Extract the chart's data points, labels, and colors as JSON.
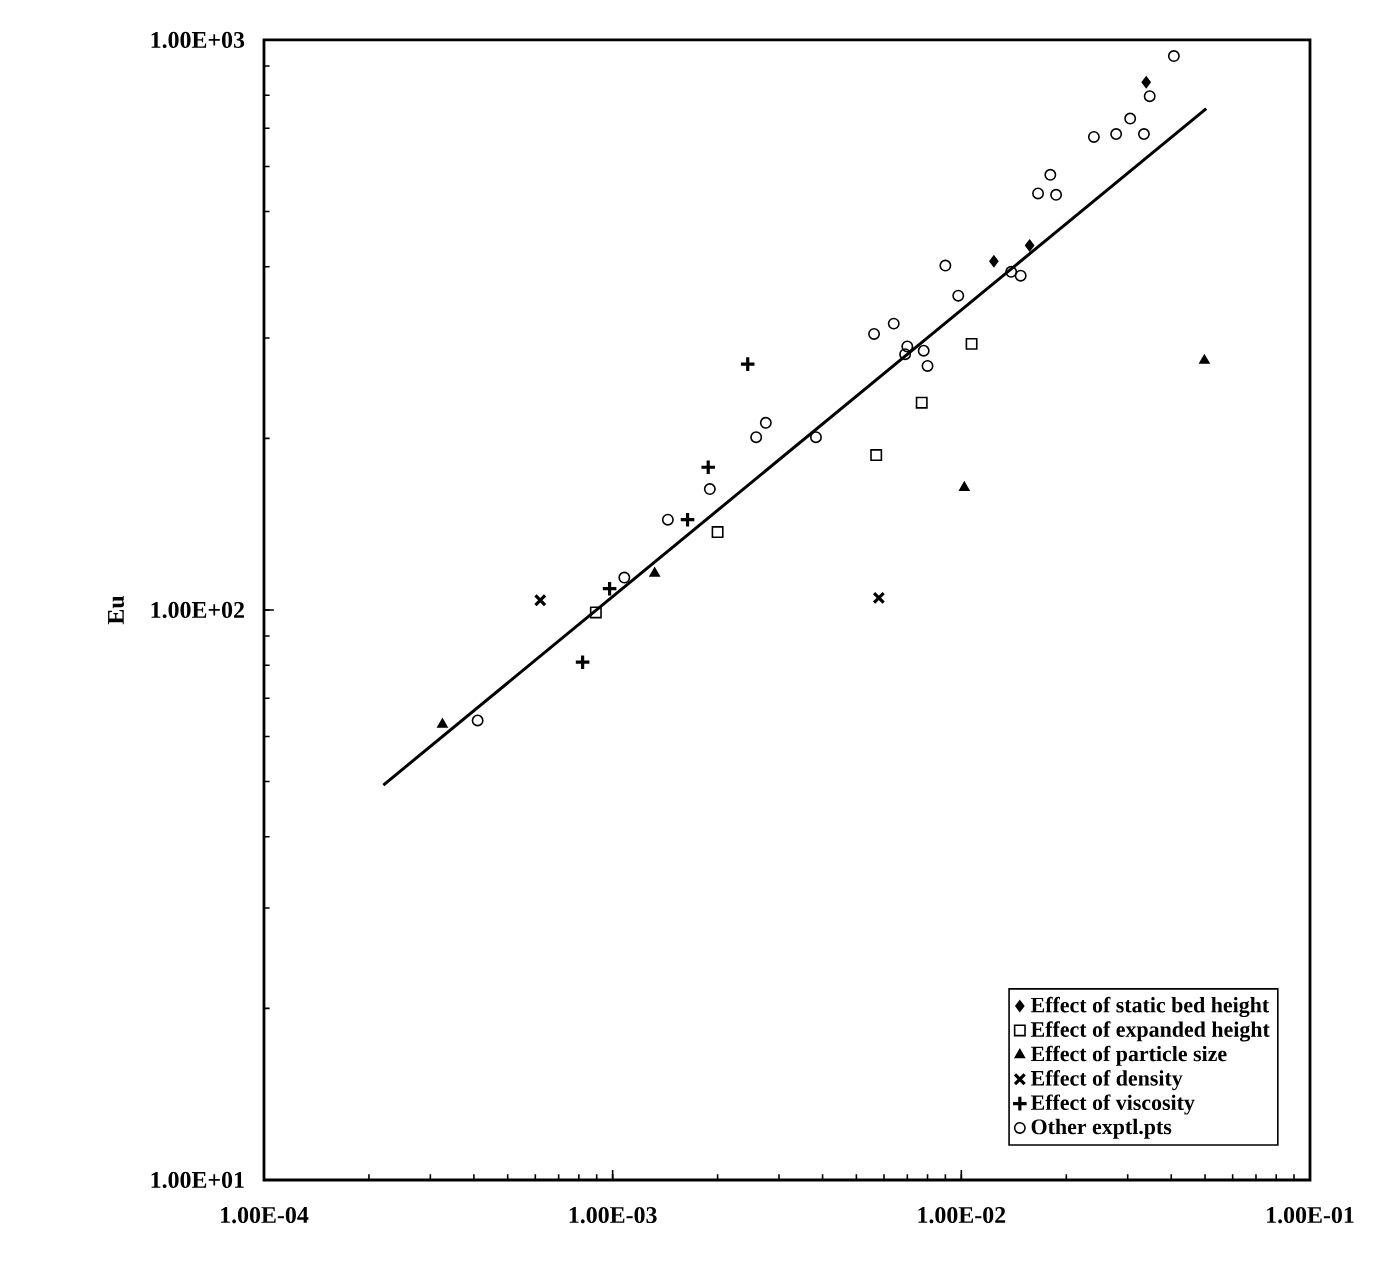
{
  "chart_data": {
    "type": "scatter",
    "ylabel": "Eu",
    "log": "xy",
    "xlim": [
      0.0001,
      0.1
    ],
    "ylim": [
      10,
      1000
    ],
    "xticks": [
      {
        "value": 0.0001,
        "label": "1.00E-04"
      },
      {
        "value": 0.001,
        "label": "1.00E-03"
      },
      {
        "value": 0.01,
        "label": "1.00E-02"
      },
      {
        "value": 0.1,
        "label": "1.00E-01"
      }
    ],
    "yticks": [
      {
        "value": 10,
        "label": "1.00E+01"
      },
      {
        "value": 100,
        "label": "1.00E+02"
      },
      {
        "value": 1000,
        "label": "1.00E+03"
      }
    ],
    "grid": false,
    "legend": "bottom right",
    "series": [
      {
        "name": "Effect of static bed height",
        "color": "#000000",
        "marker": "diamond",
        "x": [
          0.0124,
          0.0157,
          0.0339
        ],
        "values": [
          409,
          436,
          843
        ]
      },
      {
        "name": "Effect of expanded height",
        "color": "#000000",
        "marker": "square",
        "x": [
          0.0057,
          0.002,
          0.0107,
          0.0077,
          0.000895
        ],
        "values": [
          187,
          137,
          293,
          231,
          99
        ]
      },
      {
        "name": "Effect of particle size",
        "color": "#000000",
        "marker": "triangle",
        "x": [
          0.000325,
          0.00132,
          0.0102,
          0.0498
        ],
        "values": [
          63,
          116,
          164,
          274
        ]
      },
      {
        "name": "Effect of density",
        "color": "#000000",
        "marker": "cross",
        "x": [
          0.00062,
          0.0058
        ],
        "values": [
          104,
          105
        ]
      },
      {
        "name": "Effect of viscosity",
        "color": "#000000",
        "marker": "plus",
        "x": [
          0.00244,
          0.00188,
          0.00164,
          0.00082,
          0.00098
        ],
        "values": [
          270,
          178,
          144,
          81,
          109
        ]
      },
      {
        "name": "Other exptl.pts",
        "color": "#000000",
        "marker": "circle",
        "x": [
          0.00562,
          0.0064,
          0.00258,
          0.00275,
          0.00383,
          0.0019,
          0.00144,
          0.00108,
          0.00041,
          0.0407,
          0.0347,
          0.024,
          0.0278,
          0.0305,
          0.0334,
          0.018,
          0.0166,
          0.0187,
          0.0148,
          0.0139,
          0.009,
          0.0098,
          0.007,
          0.0069,
          0.0078,
          0.008
        ],
        "values": [
          305,
          318,
          201,
          213,
          201,
          163,
          144,
          114,
          64,
          937,
          797,
          676,
          684,
          728,
          684,
          580,
          538,
          535,
          386,
          392,
          402,
          356,
          290,
          281,
          285,
          268
        ]
      },
      {
        "type": "line",
        "color": "#000000",
        "marker": "none",
        "line_style": "solid",
        "x": [
          0.00022,
          0.0504
        ],
        "values": [
          49.3,
          758
        ]
      }
    ]
  }
}
